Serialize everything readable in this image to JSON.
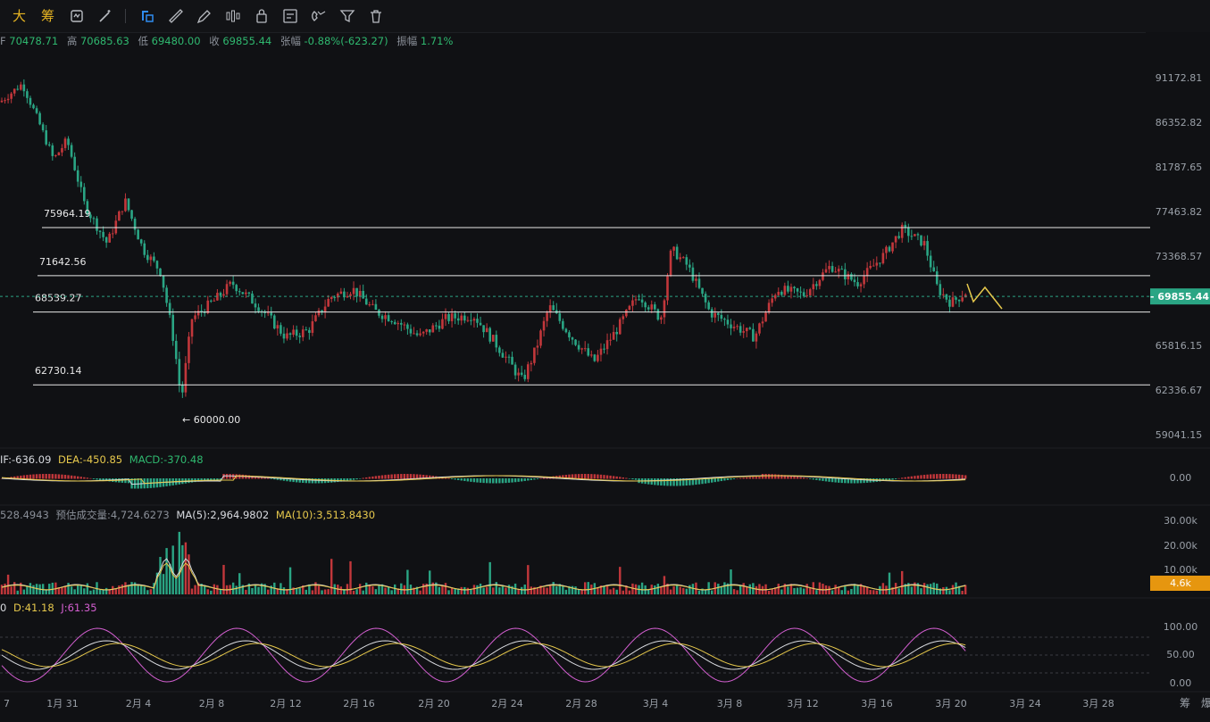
{
  "toolbar": {
    "btn_big": "大",
    "btn_chip": "筹",
    "icons": [
      "sync-icon",
      "magic-icon",
      "select-icon",
      "ruler-icon",
      "pen-icon",
      "candles-icon",
      "lock-icon",
      "note-icon",
      "magnet-icon",
      "filter-icon",
      "trash-icon"
    ]
  },
  "ohlc": {
    "open_label": "开",
    "open": "70478.71",
    "high_label": "高",
    "high": "70685.63",
    "low_label": "低",
    "low": "69480.00",
    "close_label": "收",
    "close": "69855.44",
    "change_label": "张幅",
    "change": "-0.88%(-623.27)",
    "amp_label": "振幅",
    "amp": "1.71%"
  },
  "price_axis": [
    "91172.81",
    "86352.82",
    "81787.65",
    "77463.82",
    "73368.57",
    "65816.15",
    "62336.67",
    "59041.15"
  ],
  "current_price": "69855.44",
  "levels": [
    {
      "label": "75964.19",
      "price": 75964.19
    },
    {
      "label": "71642.56",
      "price": 71642.56
    },
    {
      "label": "68539.27",
      "price": 68539.27
    },
    {
      "label": "62730.14",
      "price": 62730.14
    }
  ],
  "low_marker": "← 60000.00",
  "macd": {
    "dif_label": "IF:",
    "dif": "-636.09",
    "dea_label": "DEA:",
    "dea": "-450.85",
    "macd_label": "MACD:",
    "macd": "-370.48",
    "axis": "0.00"
  },
  "volume": {
    "vol": "528.4943",
    "est_label": "预估成交量:",
    "est": "4,724.6273",
    "ma5_label": "MA(5):",
    "ma5": "2,964.9802",
    "ma10_label": "MA(10):",
    "ma10": "3,513.8430",
    "axis": [
      "30.00k",
      "20.00k",
      "10.00k"
    ],
    "current": "4.6k"
  },
  "kdj": {
    "k_label": "0",
    "d_label": "D:",
    "d": "41.18",
    "j_label": "J:",
    "j": "61.35",
    "axis": [
      "100.00",
      "50.00",
      "0.00"
    ]
  },
  "time_axis": [
    "7",
    "1月 31",
    "2月 4",
    "2月 8",
    "2月 12",
    "2月 16",
    "2月 20",
    "2月 24",
    "2月 28",
    "3月 4",
    "3月 8",
    "3月 12",
    "3月 16",
    "3月 20",
    "3月 24",
    "3月 28"
  ],
  "bottom_right": [
    "筹",
    "爆"
  ],
  "colors": {
    "up": "#c2373b",
    "down": "#2aa584",
    "ma_yellow": "#e6c84c",
    "ma_white": "#d9dbe0",
    "j_pink": "#d45fd1",
    "price_tag": "#2aa584",
    "vol_tag": "#e6960f"
  }
}
